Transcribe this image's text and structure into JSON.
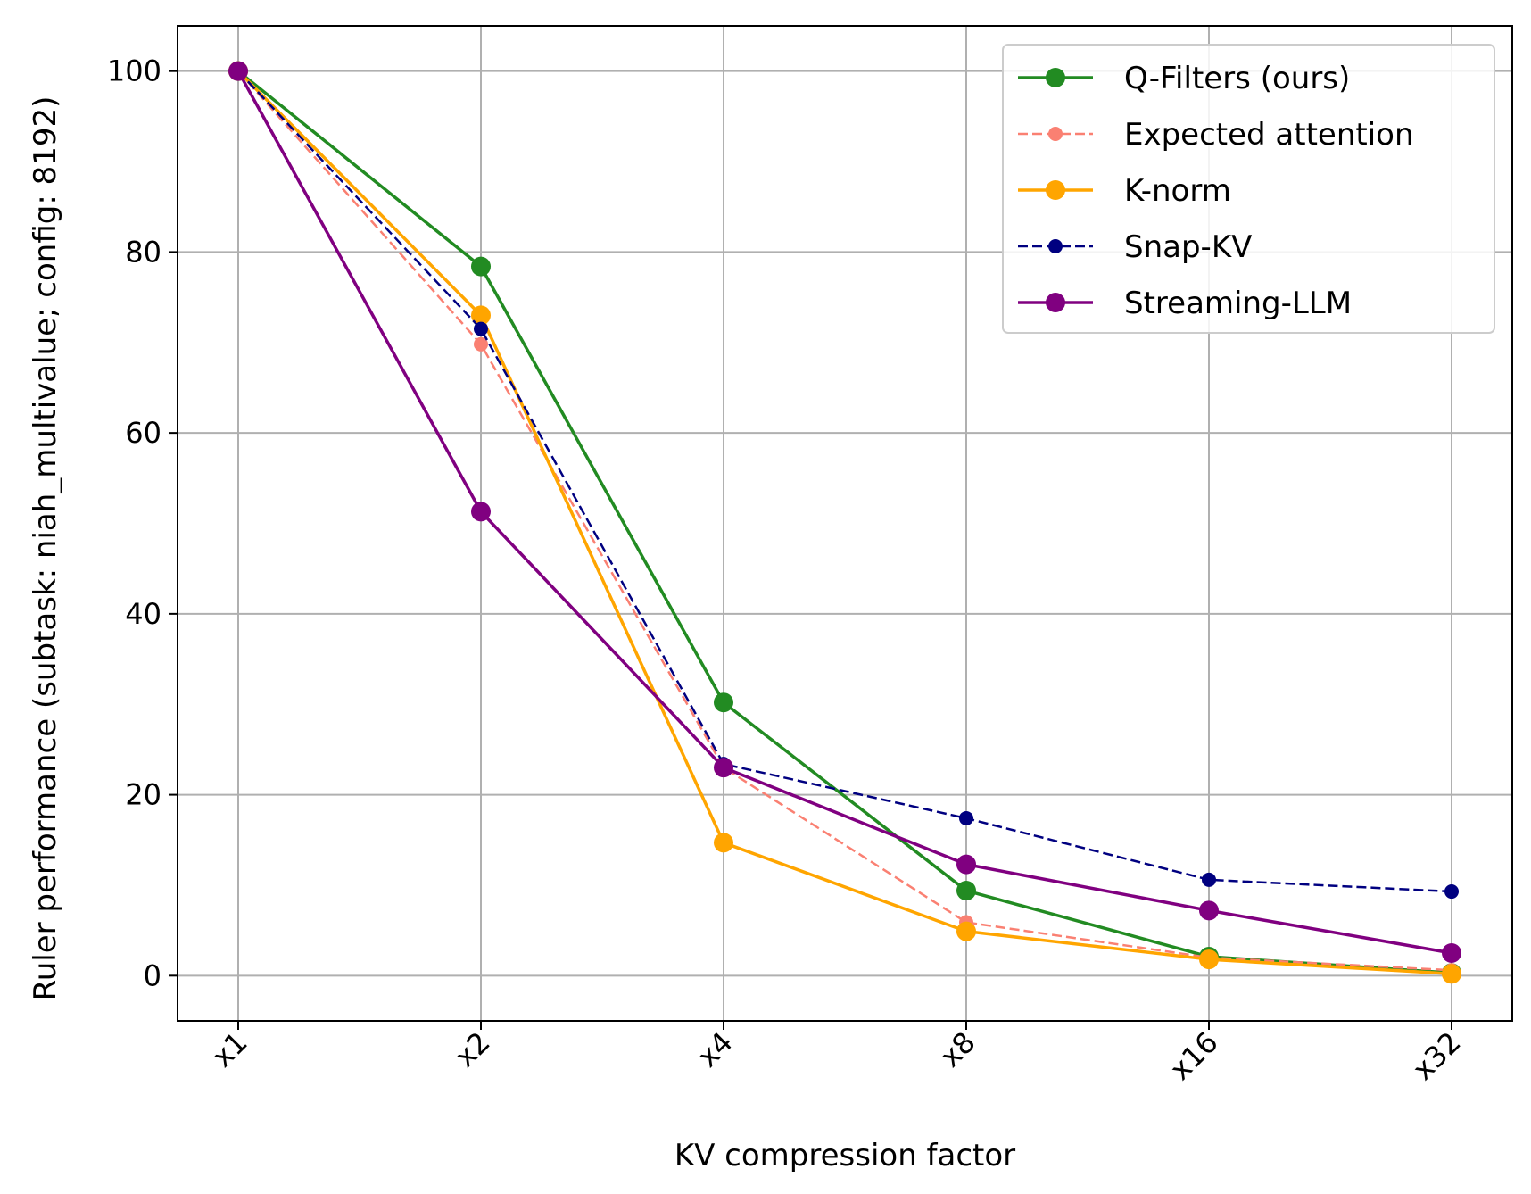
{
  "chart_data": {
    "type": "line",
    "xlabel": "KV compression factor",
    "ylabel": "Ruler performance (subtask: niah_multivalue; config: 8192)",
    "categories": [
      "x1",
      "x2",
      "x4",
      "x8",
      "x16",
      "x32"
    ],
    "x": [
      1,
      2,
      4,
      8,
      16,
      32
    ],
    "x_scale": "log2",
    "ylim": [
      -5,
      105
    ],
    "yticks": [
      0,
      20,
      40,
      60,
      80,
      100
    ],
    "grid": true,
    "legend_position": "top-right",
    "series": [
      {
        "name": "Q-Filters (ours)",
        "color": "#228b22",
        "style": "solid",
        "marker_size": "large",
        "values": [
          100,
          78.4,
          30.2,
          9.4,
          2.1,
          0.3
        ]
      },
      {
        "name": "Expected attention",
        "color": "#fa8072",
        "style": "dashed",
        "marker_size": "small",
        "values": [
          100,
          69.8,
          23.0,
          5.9,
          2.0,
          0.6
        ]
      },
      {
        "name": "K-norm",
        "color": "#ffa500",
        "style": "solid",
        "marker_size": "large",
        "values": [
          100,
          73.0,
          14.7,
          4.9,
          1.8,
          0.2
        ]
      },
      {
        "name": "Snap-KV",
        "color": "#000080",
        "style": "dashed",
        "marker_size": "small",
        "values": [
          100,
          71.5,
          23.4,
          17.4,
          10.6,
          9.3
        ]
      },
      {
        "name": "Streaming-LLM",
        "color": "#800080",
        "style": "solid",
        "marker_size": "large",
        "values": [
          100,
          51.3,
          23.0,
          12.3,
          7.2,
          2.5
        ]
      }
    ]
  }
}
